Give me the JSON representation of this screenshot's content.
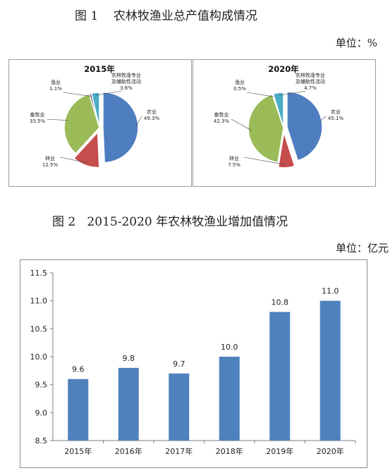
{
  "figure1": {
    "title": "图 1    农林牧渔业总产值构成情况",
    "unit": "单位：%"
  },
  "figure2": {
    "title": "图 2   2015-2020 年农林牧渔业增加值情况",
    "unit": "单位：亿元"
  },
  "colors": {
    "agriculture": "#4f7ec0",
    "forestry": "#c54d4b",
    "husbandry": "#9bbb59",
    "fishery": "#8064a2",
    "services": "#4bacc6",
    "bar": "#4f81bd"
  },
  "chart_data": [
    {
      "type": "pie",
      "title": "2015年",
      "slices": [
        {
          "key": "agriculture",
          "label": "农业",
          "value": 49.3,
          "value_label": "49.3%"
        },
        {
          "key": "forestry",
          "label": "林业",
          "value": 12.5,
          "value_label": "12.5%"
        },
        {
          "key": "husbandry",
          "label": "畜牧业",
          "value": 33.5,
          "value_label": "33.5%"
        },
        {
          "key": "fishery",
          "label": "渔业",
          "value": 1.1,
          "value_label": "1.1%"
        },
        {
          "key": "services",
          "label": [
            "农林牧渔专业",
            "及辅助性活动"
          ],
          "value": 3.6,
          "value_label": "3.6%"
        }
      ]
    },
    {
      "type": "pie",
      "title": "2020年",
      "slices": [
        {
          "key": "agriculture",
          "label": "农业",
          "value": 45.1,
          "value_label": "45.1%"
        },
        {
          "key": "forestry",
          "label": "林业",
          "value": 7.5,
          "value_label": "7.5%"
        },
        {
          "key": "husbandry",
          "label": "畜牧业",
          "value": 42.3,
          "value_label": "42.3%"
        },
        {
          "key": "fishery",
          "label": "渔业",
          "value": 0.5,
          "value_label": "0.5%"
        },
        {
          "key": "services",
          "label": [
            "农林牧渔专业",
            "及辅助性活动"
          ],
          "value": 4.7,
          "value_label": "4.7%"
        }
      ]
    },
    {
      "type": "bar",
      "categories": [
        "2015年",
        "2016年",
        "2017年",
        "2018年",
        "2019年",
        "2020年"
      ],
      "values": [
        9.6,
        9.8,
        9.7,
        10.0,
        10.8,
        11.0
      ],
      "value_labels": [
        "9.6",
        "9.8",
        "9.7",
        "10.0",
        "10.8",
        "11.0"
      ],
      "ylim": [
        8.5,
        11.5
      ],
      "yticks": [
        "8.5",
        "9.0",
        "9.5",
        "10.0",
        "10.5",
        "11.0",
        "11.5"
      ],
      "grid": false
    }
  ]
}
